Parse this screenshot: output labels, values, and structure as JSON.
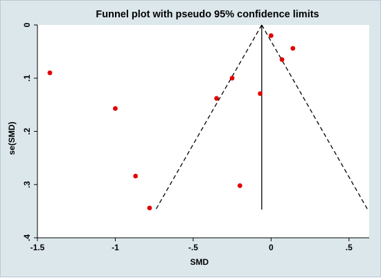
{
  "chart_data": {
    "type": "scatter",
    "title": "Funnel plot with pseudo 95% confidence limits",
    "xlabel": "SMD",
    "ylabel": "se(SMD)",
    "xlim": [
      -1.5,
      0.63
    ],
    "ylim": [
      0,
      0.4
    ],
    "y_reversed": true,
    "grid": false,
    "x_ticks": [
      -1.5,
      -1,
      -0.5,
      0,
      0.5
    ],
    "x_tick_labels": [
      "-1.5",
      "-1",
      "-.5",
      "0",
      ".5"
    ],
    "y_ticks": [
      0,
      0.1,
      0.2,
      0.3,
      0.4
    ],
    "y_tick_labels": [
      "0",
      ".1",
      ".2",
      ".3",
      ".4"
    ],
    "pooled_estimate": -0.06,
    "se_max": 0.347,
    "points": [
      {
        "x": -1.42,
        "y": 0.09
      },
      {
        "x": -1.0,
        "y": 0.157
      },
      {
        "x": -0.87,
        "y": 0.284
      },
      {
        "x": -0.78,
        "y": 0.344
      },
      {
        "x": -0.35,
        "y": 0.138
      },
      {
        "x": -0.25,
        "y": 0.1
      },
      {
        "x": -0.2,
        "y": 0.302
      },
      {
        "x": -0.07,
        "y": 0.129
      },
      {
        "x": 0.0,
        "y": 0.02
      },
      {
        "x": 0.07,
        "y": 0.065
      },
      {
        "x": 0.14,
        "y": 0.044
      }
    ],
    "colors": {
      "background": "#dce7ec",
      "plot_area": "#ffffff",
      "marker": "#e00000",
      "lines": "#000000"
    }
  }
}
